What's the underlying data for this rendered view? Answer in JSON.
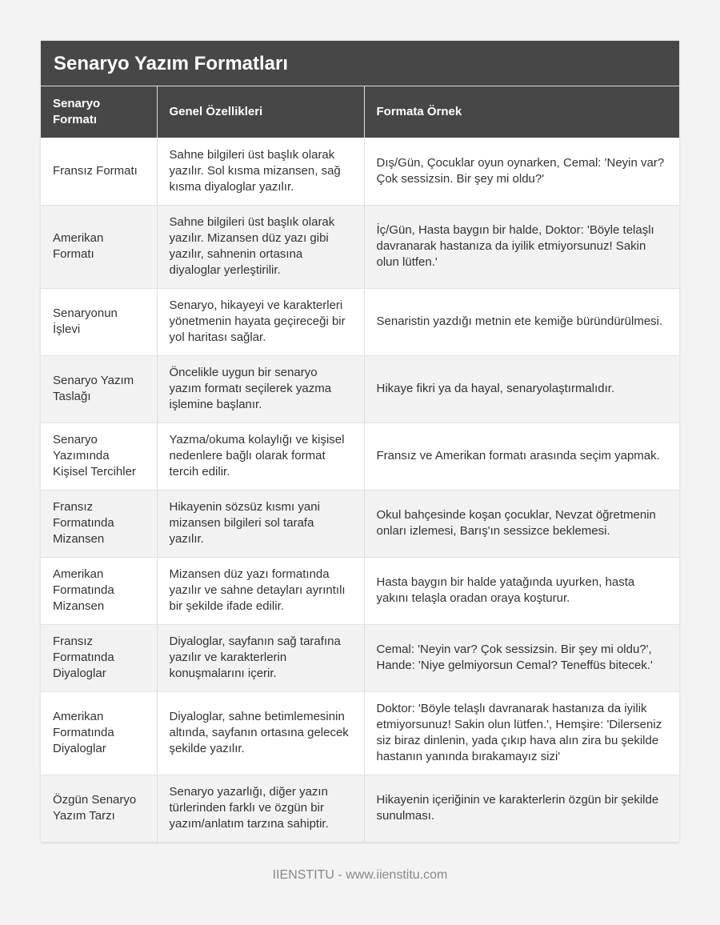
{
  "title": "Senaryo Yazım Formatları",
  "headers": [
    "Senaryo Formatı",
    "Genel Özellikleri",
    "Formata Örnek"
  ],
  "rows": [
    [
      "Fransız Formatı",
      "Sahne bilgileri üst başlık olarak yazılır. Sol kısma mizansen, sağ kısma diyaloglar yazılır.",
      "Dış/Gün, Çocuklar oyun oynarken, Cemal: 'Neyin var? Çok sessizsin. Bir şey mi oldu?'"
    ],
    [
      "Amerikan Formatı",
      "Sahne bilgileri üst başlık olarak yazılır. Mizansen düz yazı gibi yazılır, sahnenin ortasına diyaloglar yerleştirilir.",
      "İç/Gün, Hasta baygın bir halde, Doktor: 'Böyle telaşlı davranarak hastanıza da iyilik etmiyorsunuz! Sakin olun lütfen.'"
    ],
    [
      "Senaryonun İşlevi",
      "Senaryo, hikayeyi ve karakterleri yönetmenin hayata geçireceği bir yol haritası sağlar.",
      "Senaristin yazdığı metnin ete kemiğe büründürülmesi."
    ],
    [
      "Senaryo Yazım Taslağı",
      "Öncelikle uygun bir senaryo yazım formatı seçilerek yazma işlemine başlanır.",
      "Hikaye fikri ya da hayal, senaryolaştırmalıdır."
    ],
    [
      "Senaryo Yazımında Kişisel Tercihler",
      "Yazma/okuma kolaylığı ve kişisel nedenlere bağlı olarak format tercih edilir.",
      "Fransız ve Amerikan formatı arasında seçim yapmak."
    ],
    [
      "Fransız Formatında Mizansen",
      "Hikayenin sözsüz kısmı yani mizansen bilgileri sol tarafa yazılır.",
      "Okul bahçesinde koşan çocuklar, Nevzat öğretmenin onları izlemesi, Barış'ın sessizce beklemesi."
    ],
    [
      "Amerikan Formatında Mizansen",
      "Mizansen düz yazı formatında yazılır ve sahne detayları ayrıntılı bir şekilde ifade edilir.",
      "Hasta baygın bir halde yatağında uyurken, hasta yakını telaşla oradan oraya koşturur."
    ],
    [
      "Fransız Formatında Diyaloglar",
      "Diyaloglar, sayfanın sağ tarafına yazılır ve karakterlerin konuşmalarını içerir.",
      "Cemal: 'Neyin var? Çok sessizsin. Bir şey mi oldu?', Hande: 'Niye gelmiyorsun Cemal? Teneffüs bitecek.'"
    ],
    [
      "Amerikan Formatında Diyaloglar",
      "Diyaloglar, sahne betimlemesinin altında, sayfanın ortasına gelecek şekilde yazılır.",
      "Doktor: 'Böyle telaşlı davranarak hastanıza da iyilik etmiyorsunuz! Sakin olun lütfen.', Hemşire: 'Dilerseniz siz biraz dinlenin, yada çıkıp hava alın zira bu şekilde hastanın yanında bırakamayız sizi'"
    ],
    [
      "Özgün Senaryo Yazım Tarzı",
      "Senaryo yazarlığı, diğer yazın türlerinden farklı ve özgün bir yazım/anlatım tarzına sahiptir.",
      "Hikayenin içeriğinin ve karakterlerin özgün bir şekilde sunulması."
    ]
  ],
  "footer": "IIENSTITU - www.iienstitu.com"
}
